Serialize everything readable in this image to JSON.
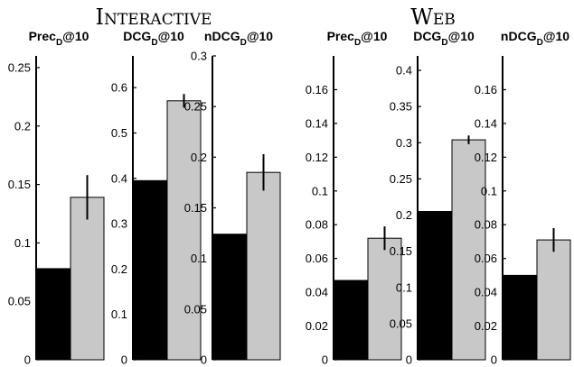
{
  "colors": {
    "baseline": "#000000",
    "proposed": "#c8c8c8",
    "axis": "#000000"
  },
  "groups": [
    {
      "title": "Interactive"
    },
    {
      "title": "Web"
    }
  ],
  "chart_data": [
    {
      "type": "bar",
      "group": "Interactive",
      "title": {
        "main": "Prec",
        "sub": "D",
        "suffix": "@10"
      },
      "categories": [
        "",
        ""
      ],
      "values": [
        0.078,
        0.139
      ],
      "errors": [
        null,
        0.019
      ],
      "ylim": [
        0,
        0.26
      ],
      "yticks": [
        0,
        0.05,
        0.1,
        0.15,
        0.2,
        0.25
      ],
      "yticklabels": [
        "0",
        "0.05",
        "0.1",
        "0.15",
        "0.2",
        "0.25"
      ]
    },
    {
      "type": "bar",
      "group": "Interactive",
      "title": {
        "main": "DCG",
        "sub": "D",
        "suffix": "@10"
      },
      "categories": [
        "",
        ""
      ],
      "values": [
        0.395,
        0.571
      ],
      "errors": [
        null,
        0.015
      ],
      "ylim": [
        0,
        0.67
      ],
      "yticks": [
        0,
        0.1,
        0.2,
        0.3,
        0.4,
        0.5,
        0.6
      ],
      "yticklabels": [
        "0",
        "0.1",
        "0.2",
        "0.3",
        "0.4",
        "0.5",
        "0.6"
      ]
    },
    {
      "type": "bar",
      "group": "Interactive",
      "title": {
        "main": "nDCG",
        "sub": "D",
        "suffix": "@10"
      },
      "categories": [
        "",
        ""
      ],
      "values": [
        0.124,
        0.185
      ],
      "errors": [
        null,
        0.018
      ],
      "ylim": [
        0,
        0.3
      ],
      "yticks": [
        0,
        0.05,
        0.1,
        0.15,
        0.2,
        0.25,
        0.3
      ],
      "yticklabels": [
        "0",
        "0.05",
        "0.1",
        "0.15",
        "0.2",
        "0.25",
        "0.3"
      ]
    },
    {
      "type": "bar",
      "group": "Web",
      "title": {
        "main": "Prec",
        "sub": "D",
        "suffix": "@10"
      },
      "categories": [
        "",
        ""
      ],
      "values": [
        0.047,
        0.072
      ],
      "errors": [
        null,
        0.007
      ],
      "ylim": [
        0,
        0.18
      ],
      "yticks": [
        0,
        0.02,
        0.04,
        0.06,
        0.08,
        0.1,
        0.12,
        0.14,
        0.16
      ],
      "yticklabels": [
        "0",
        "0.02",
        "0.04",
        "0.06",
        "0.08",
        "0.1",
        "0.12",
        "0.14",
        "0.16"
      ]
    },
    {
      "type": "bar",
      "group": "Web",
      "title": {
        "main": "DCG",
        "sub": "D",
        "suffix": "@10"
      },
      "categories": [
        "",
        ""
      ],
      "values": [
        0.205,
        0.304
      ],
      "errors": [
        null,
        0.006
      ],
      "ylim": [
        0,
        0.42
      ],
      "yticks": [
        0,
        0.05,
        0.1,
        0.15,
        0.2,
        0.25,
        0.3,
        0.35,
        0.4
      ],
      "yticklabels": [
        "0",
        "0.05",
        "0.1",
        "0.15",
        "0.2",
        "0.25",
        "0.3",
        "0.35",
        "0.4"
      ]
    },
    {
      "type": "bar",
      "group": "Web",
      "title": {
        "main": "nDCG",
        "sub": "D",
        "suffix": "@10"
      },
      "categories": [
        "",
        ""
      ],
      "values": [
        0.05,
        0.071
      ],
      "errors": [
        null,
        0.007
      ],
      "ylim": [
        0,
        0.18
      ],
      "yticks": [
        0,
        0.02,
        0.04,
        0.06,
        0.08,
        0.1,
        0.12,
        0.14,
        0.16
      ],
      "yticklabels": [
        "0",
        "0.02",
        "0.04",
        "0.06",
        "0.08",
        "0.1",
        "0.12",
        "0.14",
        "0.16"
      ]
    }
  ]
}
